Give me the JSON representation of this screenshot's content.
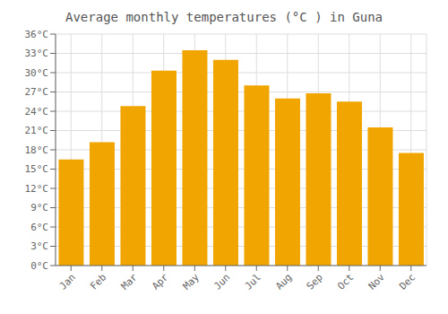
{
  "chart_data": {
    "type": "bar",
    "title": "Average monthly temperatures (°C ) in Guna",
    "categories": [
      "Jan",
      "Feb",
      "Mar",
      "Apr",
      "May",
      "Jun",
      "Jul",
      "Aug",
      "Sep",
      "Oct",
      "Nov",
      "Dec"
    ],
    "values": [
      16.5,
      19.2,
      24.8,
      30.3,
      33.5,
      32.0,
      28.0,
      26.0,
      26.8,
      25.5,
      21.5,
      17.5
    ],
    "color": "#F0A500",
    "ylim": [
      0,
      36
    ],
    "yticks": [
      {
        "value": 0,
        "label": "0°C"
      },
      {
        "value": 3,
        "label": "3°C"
      },
      {
        "value": 6,
        "label": "6°C"
      },
      {
        "value": 9,
        "label": "9°C"
      },
      {
        "value": 12,
        "label": "12°C"
      },
      {
        "value": 15,
        "label": "15°C"
      },
      {
        "value": 18,
        "label": "18°C"
      },
      {
        "value": 21,
        "label": "21°C"
      },
      {
        "value": 24,
        "label": "24°C"
      },
      {
        "value": 27,
        "label": "27°C"
      },
      {
        "value": 30,
        "label": "30°C"
      },
      {
        "value": 33,
        "label": "33°C"
      },
      {
        "value": 36,
        "label": "36°C"
      }
    ],
    "grid": true
  }
}
